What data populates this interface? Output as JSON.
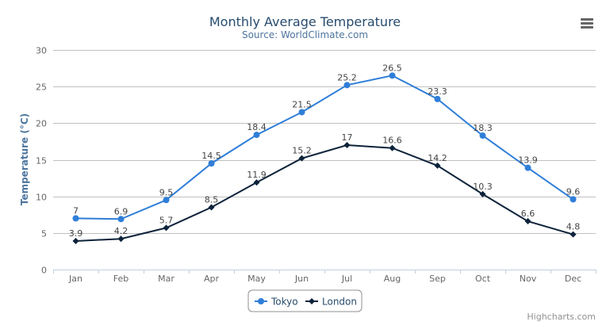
{
  "chart_data": {
    "type": "line",
    "title": "Monthly Average Temperature",
    "subtitle": "Source: WorldClimate.com",
    "xlabel": "",
    "ylabel": "Temperature (°C)",
    "ylim": [
      0,
      30
    ],
    "yticks": [
      0,
      5,
      10,
      15,
      20,
      25,
      30
    ],
    "grid": true,
    "legend": "bottom-center",
    "categories": [
      "Jan",
      "Feb",
      "Mar",
      "Apr",
      "May",
      "Jun",
      "Jul",
      "Aug",
      "Sep",
      "Oct",
      "Nov",
      "Dec"
    ],
    "series": [
      {
        "name": "Tokyo",
        "color": "#2f7ed8",
        "marker": "circle",
        "values": [
          7.0,
          6.9,
          9.5,
          14.5,
          18.4,
          21.5,
          25.2,
          26.5,
          23.3,
          18.3,
          13.9,
          9.6
        ]
      },
      {
        "name": "London",
        "color": "#0d233a",
        "marker": "diamond",
        "values": [
          3.9,
          4.2,
          5.7,
          8.5,
          11.9,
          15.2,
          17.0,
          16.6,
          14.2,
          10.3,
          6.6,
          4.8
        ]
      }
    ],
    "credits": "Highcharts.com"
  },
  "menu_icon": "hamburger-menu-icon",
  "colors": {
    "title": "#274b6d",
    "subtitle": "#4d759e",
    "axis_text": "#666666",
    "grid": "#c0c0c0"
  }
}
